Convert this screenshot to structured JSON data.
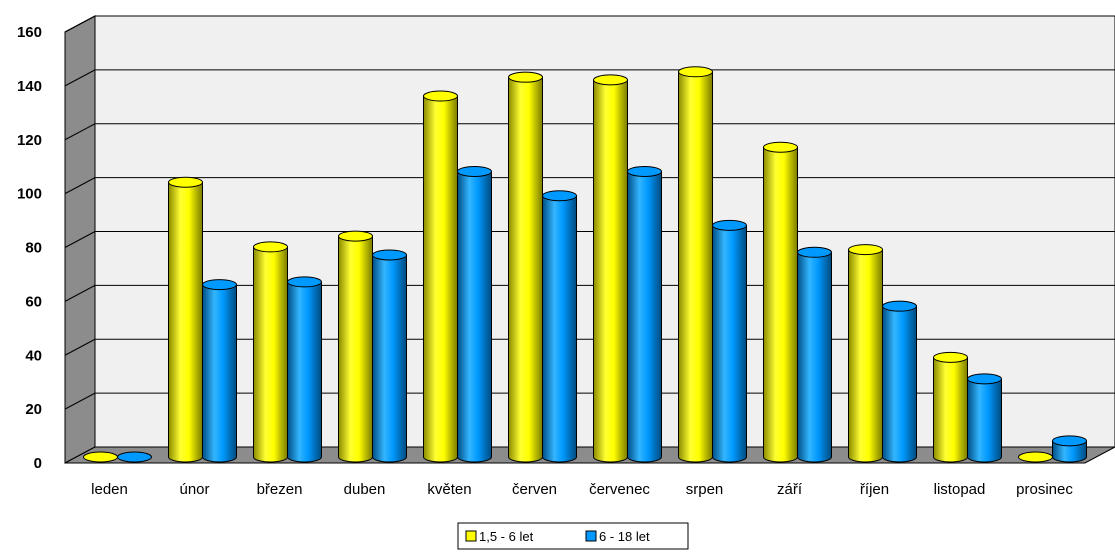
{
  "chart_data": {
    "type": "bar",
    "title": "",
    "xlabel": "",
    "ylabel": "",
    "categories": [
      "leden",
      "únor",
      "březen",
      "duben",
      "květen",
      "červen",
      "červenec",
      "srpen",
      "září",
      "říjen",
      "listopad",
      "prosinec"
    ],
    "series": [
      {
        "name": "1,5 - 6 let",
        "color": "#ffff00",
        "values": [
          0,
          102,
          78,
          82,
          134,
          141,
          140,
          143,
          115,
          77,
          37,
          0
        ]
      },
      {
        "name": "6 - 18 let",
        "color": "#0099ff",
        "values": [
          0,
          64,
          65,
          75,
          106,
          97,
          106,
          86,
          76,
          56,
          29,
          6
        ]
      }
    ],
    "ylim": [
      0,
      160
    ],
    "yticks": [
      0,
      20,
      40,
      60,
      80,
      100,
      120,
      140,
      160
    ],
    "grid": true,
    "style": "3d-cylinder",
    "legend_position": "bottom"
  }
}
